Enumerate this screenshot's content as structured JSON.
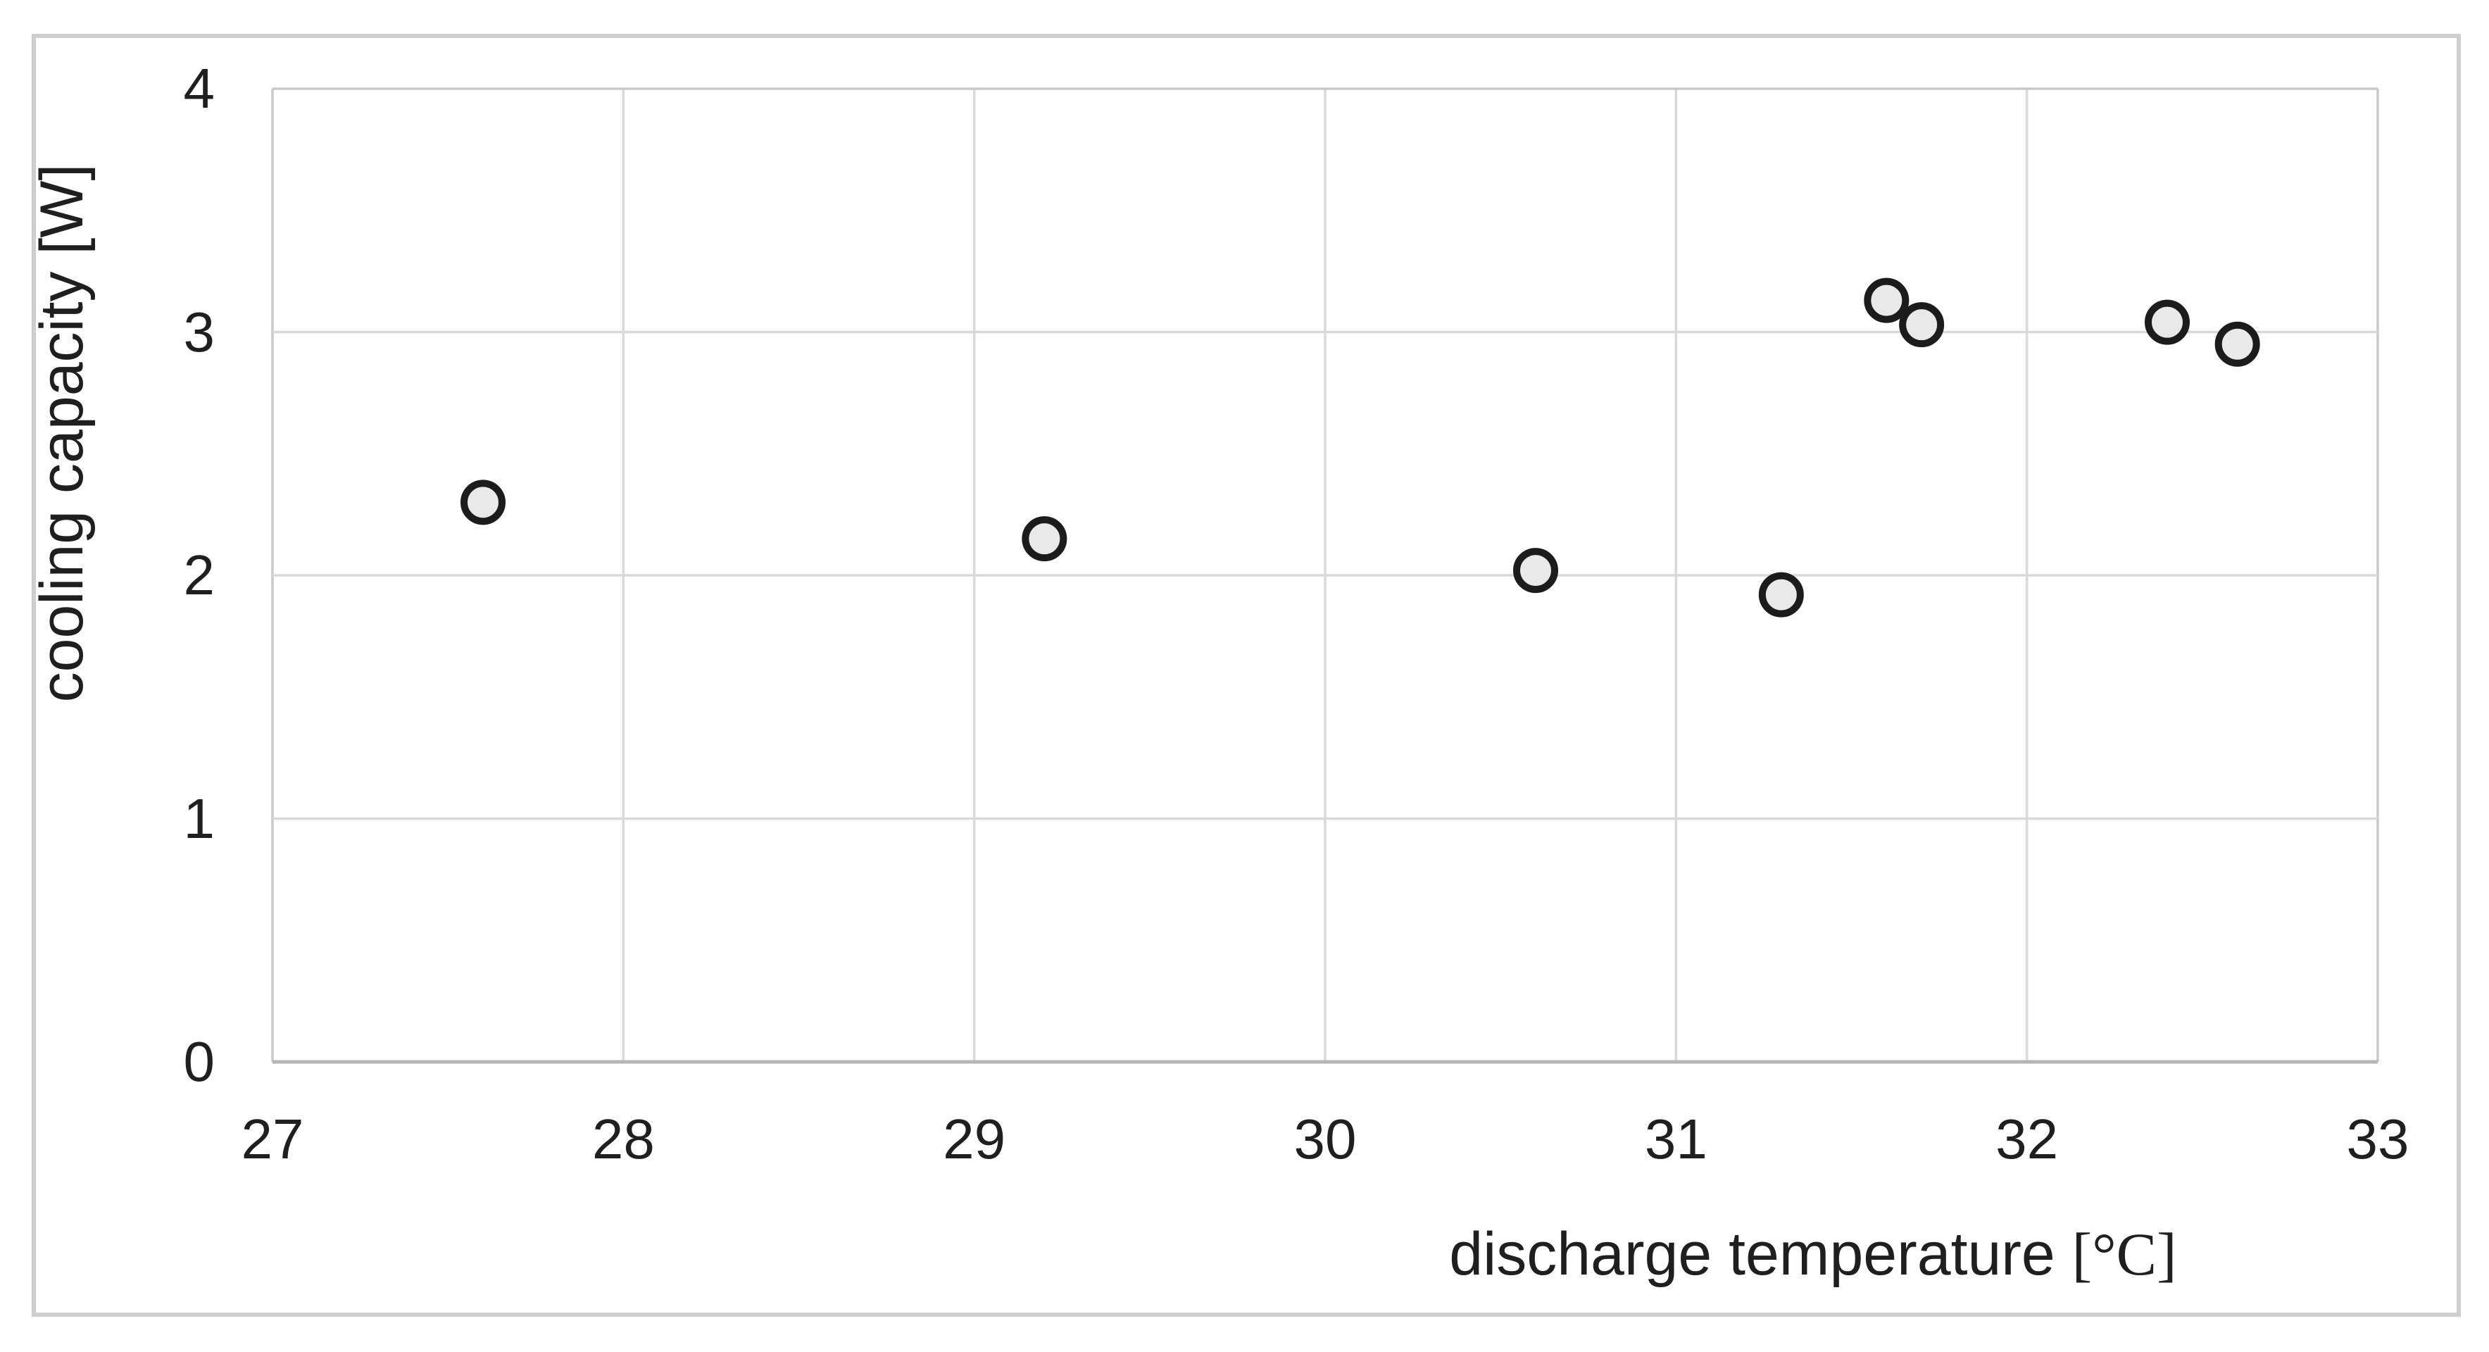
{
  "chart_data": {
    "type": "scatter",
    "title": "",
    "xlabel_prefix": "discharge temperature ",
    "xlabel_unit": "[°C]",
    "ylabel": "cooling capacity [W]",
    "xlim": [
      27,
      33
    ],
    "ylim": [
      0,
      4
    ],
    "x_ticks": [
      "27",
      "28",
      "29",
      "30",
      "31",
      "32",
      "33"
    ],
    "y_ticks": [
      "0",
      "1",
      "2",
      "3",
      "4"
    ],
    "grid": true,
    "legend_position": "none",
    "series": [
      {
        "name": "cooling capacity",
        "marker": "circle",
        "points": [
          {
            "x": 27.6,
            "y": 2.3
          },
          {
            "x": 29.2,
            "y": 2.15
          },
          {
            "x": 30.6,
            "y": 2.02
          },
          {
            "x": 31.3,
            "y": 1.92
          },
          {
            "x": 31.6,
            "y": 3.13
          },
          {
            "x": 31.7,
            "y": 3.03
          },
          {
            "x": 32.4,
            "y": 3.04
          },
          {
            "x": 32.6,
            "y": 2.95
          }
        ]
      }
    ],
    "colors": {
      "marker_fill": "#e9e9e9",
      "marker_stroke": "#1c1c1c",
      "gridline": "#d9d9d9",
      "plot_edge": "#c9c9c9",
      "axis_line": "#b5b5b5",
      "text": "#1f1f1f",
      "frame_border": "#cfcfcf",
      "background": "#ffffff"
    }
  }
}
